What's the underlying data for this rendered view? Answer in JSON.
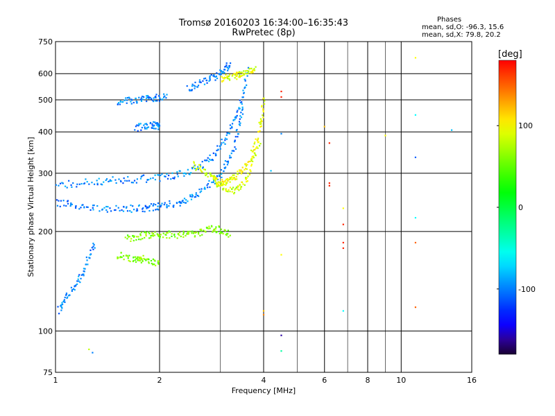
{
  "header": {
    "title": "Tromsø 20160203 16:34:00–16:35:43",
    "subtitle": "RwPretec (8p)"
  },
  "legend": {
    "heading": "Phases",
    "line1": "mean, sd,O: -96.3, 15.6",
    "line2": "mean, sd,X: 79.8, 20.2"
  },
  "colorbar": {
    "label": "[deg]",
    "ticks": [
      "100",
      "0",
      "-100"
    ],
    "tick_values": [
      100,
      0,
      -100
    ],
    "range": [
      -180,
      180
    ]
  },
  "chart_data": {
    "type": "scatter",
    "title": "Tromsø 20160203 16:34:00–16:35:43",
    "subtitle": "RwPretec (8p)",
    "xlabel": "Frequency [MHz]",
    "ylabel": "Stationary phase Virtual Height [km]",
    "x_scale": "log",
    "y_scale": "log",
    "xlim": [
      1,
      16
    ],
    "ylim": [
      75,
      750
    ],
    "x_ticks": [
      "1",
      "2",
      "4",
      "6",
      "8",
      "10",
      "16"
    ],
    "x_tick_values": [
      1,
      2,
      4,
      6,
      8,
      10,
      16
    ],
    "y_ticks": [
      "75",
      "100",
      "200",
      "300",
      "400",
      "500",
      "600",
      "750"
    ],
    "y_tick_values": [
      75,
      100,
      200,
      300,
      400,
      500,
      600,
      750
    ],
    "grid": true,
    "colorbar": "right",
    "series": [
      {
        "traces": [
          {
            "x": [
              1.0,
              1.2,
              1.5,
              1.8,
              2.0,
              2.3,
              2.6,
              3.0,
              3.3,
              3.5
            ],
            "y": [
              245,
              238,
              234,
              235,
              238,
              245,
              260,
              295,
              360,
              480
            ],
            "phase": -100
          },
          {
            "x": [
              1.0,
              1.3,
              1.6,
              2.0,
              2.4,
              2.8,
              3.1,
              3.4,
              3.6
            ],
            "y": [
              275,
              283,
              287,
              290,
              302,
              328,
              380,
              470,
              620
            ],
            "phase": -100
          },
          {
            "x": [
              1.02,
              1.1,
              1.2,
              1.3
            ],
            "y": [
              115,
              130,
              150,
              185
            ],
            "phase": -100
          },
          {
            "x": [
              1.5,
              1.7,
              1.9,
              2.1
            ],
            "y": [
              490,
              500,
              505,
              510
            ],
            "phase": -100
          },
          {
            "x": [
              1.7,
              1.9,
              2.0
            ],
            "y": [
              410,
              420,
              415
            ],
            "phase": -100
          },
          {
            "x": [
              2.4,
              2.7,
              3.0,
              3.2
            ],
            "y": [
              540,
              570,
              600,
              640
            ],
            "phase": -100
          }
        ]
      },
      {
        "traces": [
          {
            "x": [
              2.5,
              2.8,
              3.0,
              3.3,
              3.6,
              3.9
            ],
            "y": [
              320,
              295,
              275,
              265,
              290,
              380
            ],
            "phase": 85
          },
          {
            "x": [
              2.9,
              3.1,
              3.3,
              3.6,
              3.9,
              4.0
            ],
            "y": [
              285,
              280,
              290,
              320,
              400,
              500
            ],
            "phase": 95
          },
          {
            "x": [
              1.6,
              1.8,
              2.0,
              2.3,
              2.6,
              2.9,
              3.2
            ],
            "y": [
              190,
              195,
              196,
              195,
              198,
              205,
              195
            ],
            "phase": 60
          },
          {
            "x": [
              1.5,
              1.7,
              1.8,
              2.0
            ],
            "y": [
              170,
              165,
              165,
              160
            ],
            "phase": 60
          },
          {
            "x": [
              3.0,
              3.3,
              3.5,
              3.8
            ],
            "y": [
              580,
              590,
              600,
              620
            ],
            "phase": 90
          }
        ]
      },
      {
        "points": [
          {
            "x": 4.5,
            "y": 510,
            "phase": 170
          },
          {
            "x": 4.5,
            "y": 530,
            "phase": 170
          },
          {
            "x": 6.2,
            "y": 370,
            "phase": 170
          },
          {
            "x": 6.2,
            "y": 280,
            "phase": 170
          },
          {
            "x": 6.2,
            "y": 275,
            "phase": 170
          },
          {
            "x": 6.8,
            "y": 210,
            "phase": 170
          },
          {
            "x": 6.8,
            "y": 185,
            "phase": 170
          },
          {
            "x": 6.8,
            "y": 178,
            "phase": 170
          },
          {
            "x": 11.0,
            "y": 185,
            "phase": 150
          },
          {
            "x": 11.0,
            "y": 118,
            "phase": 150
          },
          {
            "x": 4.5,
            "y": 97,
            "phase": -160
          },
          {
            "x": 4.5,
            "y": 87,
            "phase": -30
          },
          {
            "x": 6.8,
            "y": 115,
            "phase": -60
          },
          {
            "x": 11.0,
            "y": 450,
            "phase": -60
          },
          {
            "x": 11.0,
            "y": 335,
            "phase": -110
          },
          {
            "x": 11.0,
            "y": 220,
            "phase": -60
          },
          {
            "x": 14.0,
            "y": 405,
            "phase": -80
          },
          {
            "x": 11.0,
            "y": 670,
            "phase": 100
          },
          {
            "x": 9.0,
            "y": 390,
            "phase": 100
          },
          {
            "x": 6.0,
            "y": 415,
            "phase": 120
          },
          {
            "x": 6.8,
            "y": 235,
            "phase": 100
          },
          {
            "x": 4.5,
            "y": 170,
            "phase": 100
          },
          {
            "x": 4.0,
            "y": 115,
            "phase": 120
          },
          {
            "x": 4.0,
            "y": 112,
            "phase": 140
          },
          {
            "x": 4.5,
            "y": 395,
            "phase": -100
          },
          {
            "x": 4.2,
            "y": 305,
            "phase": -80
          },
          {
            "x": 1.25,
            "y": 88,
            "phase": 80
          },
          {
            "x": 1.28,
            "y": 86,
            "phase": -100
          }
        ]
      }
    ]
  }
}
